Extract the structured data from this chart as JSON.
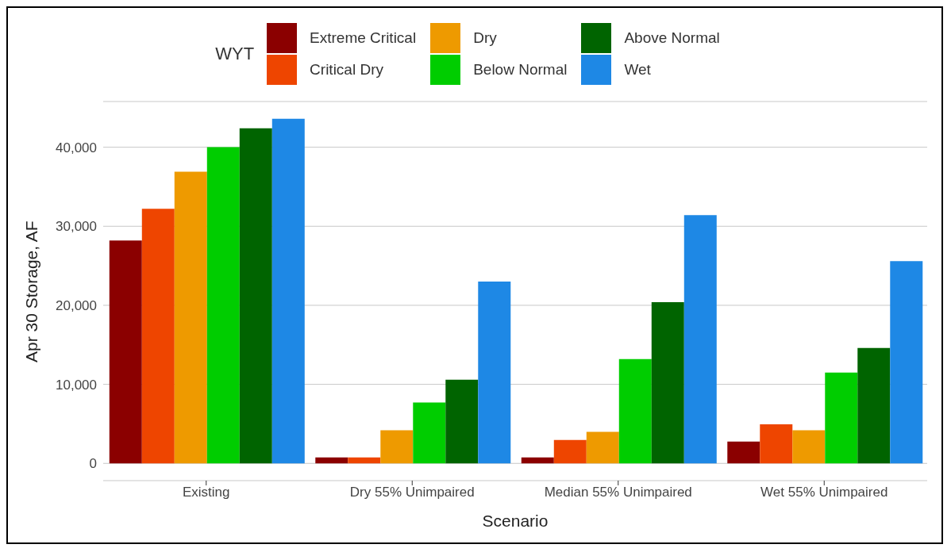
{
  "chart_data": {
    "type": "bar",
    "categories": [
      "Existing",
      "Dry 55% Unimpaired",
      "Median 55% Unimpaired",
      "Wet 55% Unimpaired"
    ],
    "series": [
      {
        "name": "Extreme Critical",
        "color": "#8b0000",
        "values": [
          28200,
          750,
          750,
          2750
        ]
      },
      {
        "name": "Critical Dry",
        "color": "#ee4500",
        "values": [
          32200,
          750,
          2950,
          4950
        ]
      },
      {
        "name": "Dry",
        "color": "#ee9a00",
        "values": [
          36900,
          4200,
          4000,
          4200
        ]
      },
      {
        "name": "Below Normal",
        "color": "#00cd00",
        "values": [
          40000,
          7700,
          13200,
          11500
        ]
      },
      {
        "name": "Above Normal",
        "color": "#006400",
        "values": [
          42400,
          10600,
          20400,
          14600
        ]
      },
      {
        "name": "Wet",
        "color": "#1e88e5",
        "values": [
          43600,
          23000,
          31400,
          25600
        ]
      }
    ],
    "xlabel": "Scenario",
    "ylabel": "Apr 30 Storage, AF",
    "legend_title": "WYT",
    "ylim": [
      -2180,
      45780
    ],
    "yticks": [
      {
        "value": 0,
        "label": "0"
      },
      {
        "value": 10000,
        "label": "10,000"
      },
      {
        "value": 20000,
        "label": "20,000"
      },
      {
        "value": 30000,
        "label": "30,000"
      },
      {
        "value": 40000,
        "label": "40,000"
      }
    ],
    "grid": "y",
    "legend": "top"
  }
}
